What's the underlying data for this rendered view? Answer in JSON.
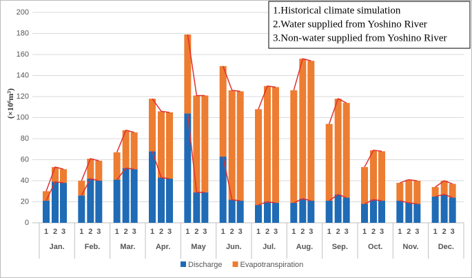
{
  "chart_data": {
    "type": "stacked-bar",
    "ylabel": "(×10⁶m³)",
    "annotations": [
      "1.Historical climate simulation",
      "2.Water supplied from Yoshino River",
      "3.Non-water supplied from Yoshino River"
    ],
    "groups": [
      "Jan.",
      "Feb.",
      "Mar.",
      "Apr.",
      "May",
      "Jun.",
      "Jul.",
      "Aug.",
      "Sep.",
      "Oct.",
      "Nov.",
      "Dec."
    ],
    "subcategories": [
      "1",
      "2",
      "3"
    ],
    "series": [
      {
        "name": "Discharge",
        "color": "#1f6bb5",
        "values": [
          [
            21,
            39,
            38
          ],
          [
            26,
            42,
            40
          ],
          [
            41,
            52,
            51
          ],
          [
            68,
            43,
            42
          ],
          [
            104,
            29,
            29
          ],
          [
            63,
            22,
            21
          ],
          [
            17,
            20,
            19
          ],
          [
            19,
            23,
            21
          ],
          [
            21,
            27,
            24
          ],
          [
            18,
            22,
            21
          ],
          [
            21,
            19,
            18
          ],
          [
            25,
            27,
            24
          ]
        ]
      },
      {
        "name": "Evapotranspiration",
        "color": "#ed7d31",
        "values": [
          [
            9,
            14,
            13
          ],
          [
            14,
            19,
            19
          ],
          [
            26,
            36,
            35
          ],
          [
            50,
            63,
            63
          ],
          [
            75,
            92,
            92
          ],
          [
            86,
            104,
            104
          ],
          [
            91,
            110,
            110
          ],
          [
            107,
            133,
            133
          ],
          [
            73,
            91,
            90
          ],
          [
            35,
            47,
            47
          ],
          [
            17,
            22,
            22
          ],
          [
            9,
            13,
            13
          ]
        ]
      }
    ],
    "connector_color": "#e03030",
    "ylim": [
      0,
      200
    ],
    "yticks": [
      0,
      20,
      40,
      60,
      80,
      100,
      120,
      140,
      160,
      180,
      200
    ],
    "grid": true,
    "legend": "bottom"
  }
}
